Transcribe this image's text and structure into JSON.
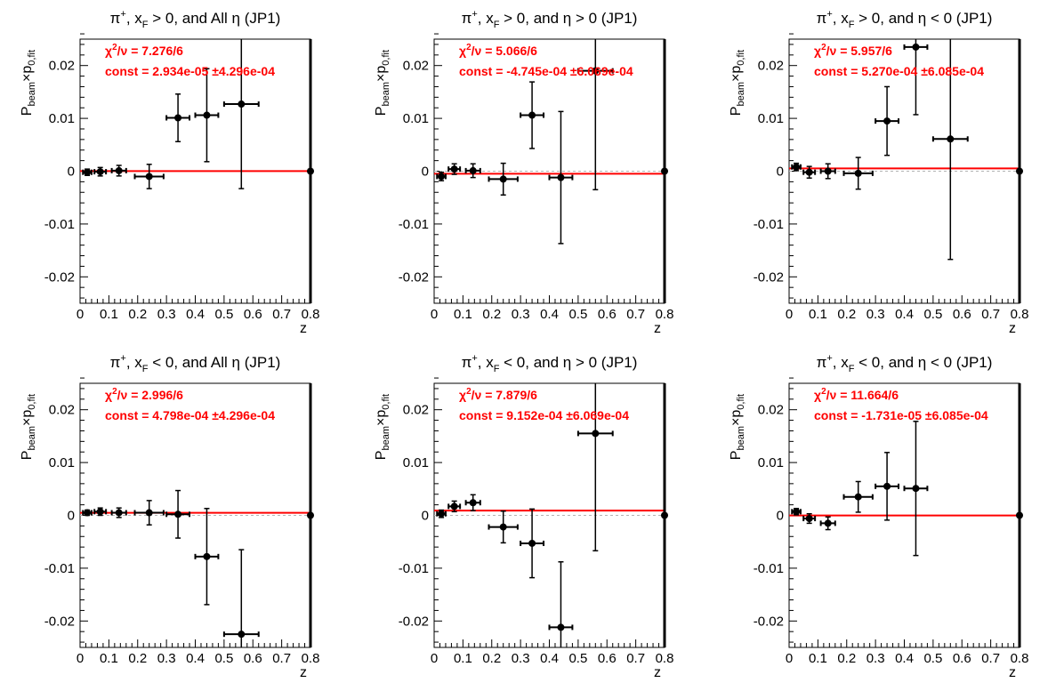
{
  "chart_data": [
    {
      "type": "scatter",
      "title_main": "π",
      "title_sup": "+",
      "title_mid1": ", x",
      "title_sub": "F",
      "title_rest": " > 0, and All η (JP1)",
      "ylabel_main": "P",
      "ylabel_sub1": "beam",
      "ylabel_mid": "×p",
      "ylabel_sub2": "0,fit",
      "xlabel": "z",
      "xlim": [
        0,
        0.8
      ],
      "ylim": [
        -0.025,
        0.025
      ],
      "xticks": [
        "0",
        "0.1",
        "0.2",
        "0.3",
        "0.4",
        "0.5",
        "0.6",
        "0.7",
        "0.8"
      ],
      "yticks": [
        "-0.02",
        "-0.01",
        "0",
        "0.01",
        "0.02"
      ],
      "chi2_label": "χ",
      "chi2_sup": "2",
      "chi2_rest": "/ν = 7.276/6",
      "const_label": "const = 2.934e-05  ±4.296e-04",
      "fit": 2.93e-05,
      "points": [
        {
          "x": 0.025,
          "y": -0.0002,
          "xerr": 0.015,
          "yerr": 0.0006
        },
        {
          "x": 0.07,
          "y": -0.0001,
          "xerr": 0.02,
          "yerr": 0.0008
        },
        {
          "x": 0.135,
          "y": 0.0001,
          "xerr": 0.025,
          "yerr": 0.001
        },
        {
          "x": 0.24,
          "y": -0.001,
          "xerr": 0.05,
          "yerr": 0.0023
        },
        {
          "x": 0.34,
          "y": 0.0101,
          "xerr": 0.04,
          "yerr": 0.0045
        },
        {
          "x": 0.44,
          "y": 0.0106,
          "xerr": 0.04,
          "yerr": 0.0088
        },
        {
          "x": 0.56,
          "y": 0.0127,
          "xerr": 0.06,
          "yerr": 0.016
        },
        {
          "x": 0.8,
          "y": 0.0,
          "xerr": 0,
          "yerr": 0
        }
      ]
    },
    {
      "type": "scatter",
      "title_main": "π",
      "title_sup": "+",
      "title_mid1": ", x",
      "title_sub": "F",
      "title_rest": " > 0, and η > 0 (JP1)",
      "ylabel_main": "P",
      "ylabel_sub1": "beam",
      "ylabel_mid": "×p",
      "ylabel_sub2": "0,fit",
      "xlabel": "z",
      "xlim": [
        0,
        0.8
      ],
      "ylim": [
        -0.025,
        0.025
      ],
      "xticks": [
        "0",
        "0.1",
        "0.2",
        "0.3",
        "0.4",
        "0.5",
        "0.6",
        "0.7",
        "0.8"
      ],
      "yticks": [
        "-0.02",
        "-0.01",
        "0",
        "0.01",
        "0.02"
      ],
      "chi2_label": "χ",
      "chi2_sup": "2",
      "chi2_rest": "/ν = 5.066/6",
      "const_label": "const = -4.745e-04  ±6.069e-04",
      "fit": -0.0004745,
      "points": [
        {
          "x": 0.025,
          "y": -0.001,
          "xerr": 0.015,
          "yerr": 0.0008
        },
        {
          "x": 0.07,
          "y": 0.0004,
          "xerr": 0.02,
          "yerr": 0.001
        },
        {
          "x": 0.135,
          "y": 0.0001,
          "xerr": 0.025,
          "yerr": 0.0013
        },
        {
          "x": 0.24,
          "y": -0.0015,
          "xerr": 0.05,
          "yerr": 0.003
        },
        {
          "x": 0.34,
          "y": 0.0106,
          "xerr": 0.04,
          "yerr": 0.0063
        },
        {
          "x": 0.44,
          "y": -0.0012,
          "xerr": 0.04,
          "yerr": 0.0125
        },
        {
          "x": 0.56,
          "y": 0.019,
          "xerr": 0.06,
          "yerr": 0.0225
        },
        {
          "x": 0.8,
          "y": 0.0,
          "xerr": 0,
          "yerr": 0
        }
      ]
    },
    {
      "type": "scatter",
      "title_main": "π",
      "title_sup": "+",
      "title_mid1": ", x",
      "title_sub": "F",
      "title_rest": " > 0, and η < 0 (JP1)",
      "ylabel_main": "P",
      "ylabel_sub1": "beam",
      "ylabel_mid": "×p",
      "ylabel_sub2": "0,fit",
      "xlabel": "z",
      "xlim": [
        0,
        0.8
      ],
      "ylim": [
        -0.025,
        0.025
      ],
      "xticks": [
        "0",
        "0.1",
        "0.2",
        "0.3",
        "0.4",
        "0.5",
        "0.6",
        "0.7",
        "0.8"
      ],
      "yticks": [
        "-0.02",
        "-0.01",
        "0",
        "0.01",
        "0.02"
      ],
      "chi2_label": "χ",
      "chi2_sup": "2",
      "chi2_rest": "/ν = 5.957/6",
      "const_label": "const = 5.270e-04  ±6.085e-04",
      "fit": 0.000527,
      "points": [
        {
          "x": 0.025,
          "y": 0.0008,
          "xerr": 0.015,
          "yerr": 0.0007
        },
        {
          "x": 0.07,
          "y": -0.0002,
          "xerr": 0.02,
          "yerr": 0.0011
        },
        {
          "x": 0.135,
          "y": 0.0,
          "xerr": 0.025,
          "yerr": 0.0014
        },
        {
          "x": 0.24,
          "y": -0.0004,
          "xerr": 0.05,
          "yerr": 0.003
        },
        {
          "x": 0.34,
          "y": 0.0095,
          "xerr": 0.04,
          "yerr": 0.0065
        },
        {
          "x": 0.44,
          "y": 0.0235,
          "xerr": 0.04,
          "yerr": 0.0128
        },
        {
          "x": 0.56,
          "y": 0.0061,
          "xerr": 0.06,
          "yerr": 0.0228
        },
        {
          "x": 0.8,
          "y": 0.0,
          "xerr": 0,
          "yerr": 0
        }
      ]
    },
    {
      "type": "scatter",
      "title_main": "π",
      "title_sup": "+",
      "title_mid1": ", x",
      "title_sub": "F",
      "title_rest": " < 0, and All η (JP1)",
      "ylabel_main": "P",
      "ylabel_sub1": "beam",
      "ylabel_mid": "×p",
      "ylabel_sub2": "0,fit",
      "xlabel": "z",
      "xlim": [
        0,
        0.8
      ],
      "ylim": [
        -0.025,
        0.025
      ],
      "xticks": [
        "0",
        "0.1",
        "0.2",
        "0.3",
        "0.4",
        "0.5",
        "0.6",
        "0.7",
        "0.8"
      ],
      "yticks": [
        "-0.02",
        "-0.01",
        "0",
        "0.01",
        "0.02"
      ],
      "chi2_label": "χ",
      "chi2_sup": "2",
      "chi2_rest": "/ν = 2.996/6",
      "const_label": "const = 4.798e-04  ±4.296e-04",
      "fit": 0.0004798,
      "points": [
        {
          "x": 0.025,
          "y": 0.0005,
          "xerr": 0.015,
          "yerr": 0.0005
        },
        {
          "x": 0.07,
          "y": 0.0007,
          "xerr": 0.02,
          "yerr": 0.0007
        },
        {
          "x": 0.135,
          "y": 0.0005,
          "xerr": 0.025,
          "yerr": 0.0009
        },
        {
          "x": 0.24,
          "y": 0.0005,
          "xerr": 0.05,
          "yerr": 0.0023
        },
        {
          "x": 0.34,
          "y": 0.0002,
          "xerr": 0.04,
          "yerr": 0.0045
        },
        {
          "x": 0.44,
          "y": -0.0078,
          "xerr": 0.04,
          "yerr": 0.0091
        },
        {
          "x": 0.56,
          "y": -0.0225,
          "xerr": 0.06,
          "yerr": 0.016
        },
        {
          "x": 0.8,
          "y": 0.0,
          "xerr": 0,
          "yerr": 0
        }
      ]
    },
    {
      "type": "scatter",
      "title_main": "π",
      "title_sup": "+",
      "title_mid1": ", x",
      "title_sub": "F",
      "title_rest": " < 0, and η > 0 (JP1)",
      "ylabel_main": "P",
      "ylabel_sub1": "beam",
      "ylabel_mid": "×p",
      "ylabel_sub2": "0,fit",
      "xlabel": "z",
      "xlim": [
        0,
        0.8
      ],
      "ylim": [
        -0.025,
        0.025
      ],
      "xticks": [
        "0",
        "0.1",
        "0.2",
        "0.3",
        "0.4",
        "0.5",
        "0.6",
        "0.7",
        "0.8"
      ],
      "yticks": [
        "-0.02",
        "-0.01",
        "0",
        "0.01",
        "0.02"
      ],
      "chi2_label": "χ",
      "chi2_sup": "2",
      "chi2_rest": "/ν = 7.879/6",
      "const_label": "const = 9.152e-04  ±6.069e-04",
      "fit": 0.0009152,
      "points": [
        {
          "x": 0.025,
          "y": 0.0003,
          "xerr": 0.015,
          "yerr": 0.0007
        },
        {
          "x": 0.07,
          "y": 0.0017,
          "xerr": 0.02,
          "yerr": 0.001
        },
        {
          "x": 0.135,
          "y": 0.0024,
          "xerr": 0.025,
          "yerr": 0.0015
        },
        {
          "x": 0.24,
          "y": -0.0022,
          "xerr": 0.05,
          "yerr": 0.003
        },
        {
          "x": 0.34,
          "y": -0.0053,
          "xerr": 0.04,
          "yerr": 0.0065
        },
        {
          "x": 0.44,
          "y": -0.0212,
          "xerr": 0.04,
          "yerr": 0.0124
        },
        {
          "x": 0.56,
          "y": 0.0155,
          "xerr": 0.06,
          "yerr": 0.0222
        },
        {
          "x": 0.8,
          "y": 0.0,
          "xerr": 0,
          "yerr": 0
        }
      ]
    },
    {
      "type": "scatter",
      "title_main": "π",
      "title_sup": "+",
      "title_mid1": ", x",
      "title_sub": "F",
      "title_rest": " < 0, and η < 0 (JP1)",
      "ylabel_main": "P",
      "ylabel_sub1": "beam",
      "ylabel_mid": "×p",
      "ylabel_sub2": "0,fit",
      "xlabel": "z",
      "xlim": [
        0,
        0.8
      ],
      "ylim": [
        -0.025,
        0.025
      ],
      "xticks": [
        "0",
        "0.1",
        "0.2",
        "0.3",
        "0.4",
        "0.5",
        "0.6",
        "0.7",
        "0.8"
      ],
      "yticks": [
        "-0.02",
        "-0.01",
        "0",
        "0.01",
        "0.02"
      ],
      "chi2_label": "χ",
      "chi2_sup": "2",
      "chi2_rest": "/ν = 11.664/6",
      "const_label": "const = -1.731e-05  ±6.085e-04",
      "fit": -1.73e-05,
      "points": [
        {
          "x": 0.025,
          "y": 0.0007,
          "xerr": 0.015,
          "yerr": 0.0006
        },
        {
          "x": 0.07,
          "y": -0.0006,
          "xerr": 0.02,
          "yerr": 0.0009
        },
        {
          "x": 0.135,
          "y": -0.0015,
          "xerr": 0.025,
          "yerr": 0.0012
        },
        {
          "x": 0.24,
          "y": 0.0035,
          "xerr": 0.05,
          "yerr": 0.0029
        },
        {
          "x": 0.34,
          "y": 0.0055,
          "xerr": 0.04,
          "yerr": 0.0064
        },
        {
          "x": 0.44,
          "y": 0.0051,
          "xerr": 0.04,
          "yerr": 0.0127
        },
        {
          "x": 0.8,
          "y": 0.0,
          "xerr": 0,
          "yerr": 0
        }
      ]
    }
  ],
  "colors": {
    "axis": "#000000",
    "points": "#000000",
    "fit": "#ff0000",
    "zero_line": "#b4b4b4",
    "fit_text": "#ff0000"
  }
}
